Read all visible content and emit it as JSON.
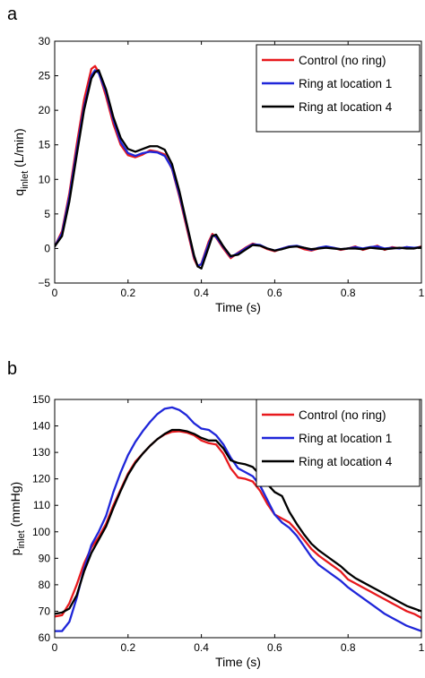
{
  "chart_data": [
    {
      "type": "line",
      "panel_label": "a",
      "xlabel": "Time (s)",
      "ylabel_main": "q",
      "ylabel_sub": "inlet",
      "ylabel_unit": " (L/min)",
      "xlim": [
        0,
        1
      ],
      "ylim": [
        -5,
        30
      ],
      "xticks": [
        0,
        0.2,
        0.4,
        0.6,
        0.8,
        1
      ],
      "xtick_labels": [
        "0",
        "0.2",
        "0.4",
        "0.6",
        "0.8",
        "1"
      ],
      "yticks": [
        -5,
        0,
        5,
        10,
        15,
        20,
        25,
        30
      ],
      "ytick_labels": [
        "−5",
        "0",
        "5",
        "10",
        "15",
        "20",
        "25",
        "30"
      ],
      "grid": false,
      "legend_position": "top-right",
      "series": [
        {
          "name": "Control (no ring)",
          "color": "#e8191d",
          "x": [
            0,
            0.02,
            0.04,
            0.06,
            0.08,
            0.1,
            0.11,
            0.12,
            0.14,
            0.16,
            0.18,
            0.2,
            0.22,
            0.24,
            0.26,
            0.28,
            0.3,
            0.32,
            0.34,
            0.36,
            0.38,
            0.39,
            0.4,
            0.42,
            0.43,
            0.44,
            0.46,
            0.48,
            0.5,
            0.52,
            0.54,
            0.56,
            0.58,
            0.6,
            0.62,
            0.64,
            0.66,
            0.68,
            0.7,
            0.72,
            0.74,
            0.76,
            0.78,
            0.8,
            0.82,
            0.84,
            0.86,
            0.88,
            0.9,
            0.92,
            0.94,
            0.96,
            0.98,
            1
          ],
          "y": [
            0.3,
            2.5,
            8,
            15,
            21.5,
            26,
            26.4,
            25.5,
            22,
            18,
            15,
            13.5,
            13.2,
            13.6,
            14.2,
            14,
            13.6,
            11.5,
            7.5,
            3,
            -1.5,
            -2.6,
            -2.2,
            1,
            2.1,
            1.6,
            0,
            -1.4,
            -0.6,
            0.1,
            0.7,
            0.4,
            -0.1,
            -0.4,
            0,
            0.3,
            0.3,
            -0.1,
            -0.3,
            0,
            0.2,
            0.1,
            -0.2,
            0,
            0.3,
            -0.2,
            0.1,
            0.4,
            -0.2,
            0.2,
            0,
            0.2,
            0,
            0.3
          ]
        },
        {
          "name": "Ring at location 1",
          "color": "#1f26d9",
          "x": [
            0,
            0.02,
            0.04,
            0.06,
            0.08,
            0.1,
            0.11,
            0.12,
            0.14,
            0.16,
            0.18,
            0.2,
            0.22,
            0.24,
            0.26,
            0.28,
            0.3,
            0.32,
            0.34,
            0.36,
            0.38,
            0.39,
            0.4,
            0.42,
            0.43,
            0.44,
            0.46,
            0.48,
            0.5,
            0.52,
            0.54,
            0.56,
            0.58,
            0.6,
            0.62,
            0.64,
            0.66,
            0.68,
            0.7,
            0.72,
            0.74,
            0.76,
            0.78,
            0.8,
            0.82,
            0.84,
            0.86,
            0.88,
            0.9,
            0.92,
            0.94,
            0.96,
            0.98,
            1
          ],
          "y": [
            0.3,
            2.2,
            7.5,
            14.2,
            20.5,
            25,
            25.8,
            25.4,
            22.6,
            18.6,
            15.4,
            13.8,
            13.4,
            13.8,
            14,
            13.9,
            13.4,
            11.6,
            7.8,
            3.4,
            -1.2,
            -2.5,
            -2.3,
            0.7,
            1.9,
            1.7,
            0.2,
            -1.2,
            -0.7,
            0,
            0.6,
            0.5,
            0,
            -0.3,
            0,
            0.3,
            0.4,
            0.1,
            -0.2,
            0.1,
            0.3,
            0.1,
            -0.1,
            0,
            0.2,
            0,
            0.2,
            0.3,
            0,
            0.1,
            0,
            0.2,
            0.1,
            0.2
          ]
        },
        {
          "name": "Ring at location 4",
          "color": "#000000",
          "x": [
            0,
            0.02,
            0.04,
            0.06,
            0.08,
            0.1,
            0.11,
            0.12,
            0.14,
            0.16,
            0.18,
            0.2,
            0.22,
            0.24,
            0.26,
            0.28,
            0.3,
            0.32,
            0.34,
            0.36,
            0.38,
            0.39,
            0.4,
            0.42,
            0.43,
            0.44,
            0.46,
            0.48,
            0.5,
            0.52,
            0.54,
            0.56,
            0.58,
            0.6,
            0.62,
            0.64,
            0.66,
            0.68,
            0.7,
            0.72,
            0.74,
            0.76,
            0.78,
            0.8,
            0.82,
            0.84,
            0.86,
            0.88,
            0.9,
            0.92,
            0.94,
            0.96,
            0.98,
            1
          ],
          "y": [
            0.3,
            1.8,
            6.8,
            13.5,
            20,
            24.6,
            25.5,
            25.8,
            23,
            19,
            16,
            14.4,
            14,
            14.4,
            14.8,
            14.8,
            14.3,
            12.2,
            8.3,
            3.6,
            -1,
            -2.6,
            -2.9,
            0.2,
            1.8,
            2,
            0.3,
            -1.1,
            -0.9,
            -0.2,
            0.5,
            0.4,
            0,
            -0.3,
            -0.1,
            0.2,
            0.3,
            0.1,
            -0.1,
            0,
            0.1,
            0,
            -0.1,
            0,
            0,
            -0.1,
            0.1,
            0,
            -0.1,
            0,
            0.1,
            0,
            0,
            0.2
          ]
        }
      ]
    },
    {
      "type": "line",
      "panel_label": "b",
      "xlabel": "Time (s)",
      "ylabel_main": "p",
      "ylabel_sub": "inlet",
      "ylabel_unit": " (mmHg)",
      "xlim": [
        0,
        1
      ],
      "ylim": [
        60,
        150
      ],
      "xticks": [
        0,
        0.2,
        0.4,
        0.6,
        0.8,
        1
      ],
      "xtick_labels": [
        "0",
        "0.2",
        "0.4",
        "0.6",
        "0.8",
        "1"
      ],
      "yticks": [
        60,
        70,
        80,
        90,
        100,
        110,
        120,
        130,
        140,
        150
      ],
      "ytick_labels": [
        "60",
        "70",
        "80",
        "90",
        "100",
        "110",
        "120",
        "130",
        "140",
        "150"
      ],
      "grid": false,
      "legend_position": "top-right",
      "series": [
        {
          "name": "Control (no ring)",
          "color": "#e8191d",
          "x": [
            0,
            0.02,
            0.04,
            0.06,
            0.08,
            0.1,
            0.12,
            0.14,
            0.16,
            0.18,
            0.2,
            0.22,
            0.24,
            0.26,
            0.28,
            0.3,
            0.32,
            0.34,
            0.36,
            0.38,
            0.4,
            0.42,
            0.44,
            0.46,
            0.48,
            0.5,
            0.52,
            0.54,
            0.56,
            0.58,
            0.6,
            0.62,
            0.64,
            0.66,
            0.68,
            0.7,
            0.72,
            0.74,
            0.76,
            0.78,
            0.8,
            0.82,
            0.84,
            0.86,
            0.88,
            0.9,
            0.92,
            0.94,
            0.96,
            0.98,
            1
          ],
          "y": [
            68,
            68.5,
            73,
            80,
            88,
            94,
            98,
            103,
            110,
            116,
            122,
            126.5,
            129.5,
            132.5,
            135,
            136.8,
            137.8,
            138,
            137.5,
            136.5,
            134.5,
            133.5,
            133,
            129.5,
            124,
            120.5,
            120,
            119,
            115.5,
            110.5,
            106.5,
            105,
            103.5,
            100.5,
            97,
            93.5,
            91,
            89,
            87,
            85,
            82,
            80.5,
            79,
            77.5,
            76,
            74.5,
            73,
            71.5,
            70,
            69,
            67.5
          ]
        },
        {
          "name": "Ring at location 1",
          "color": "#1f26d9",
          "x": [
            0,
            0.02,
            0.04,
            0.06,
            0.08,
            0.1,
            0.12,
            0.14,
            0.16,
            0.18,
            0.2,
            0.22,
            0.24,
            0.26,
            0.28,
            0.3,
            0.32,
            0.34,
            0.36,
            0.38,
            0.4,
            0.42,
            0.44,
            0.46,
            0.48,
            0.5,
            0.52,
            0.54,
            0.56,
            0.58,
            0.6,
            0.62,
            0.64,
            0.66,
            0.68,
            0.7,
            0.72,
            0.74,
            0.76,
            0.78,
            0.8,
            0.82,
            0.84,
            0.86,
            0.88,
            0.9,
            0.92,
            0.94,
            0.96,
            0.98,
            1
          ],
          "y": [
            62.5,
            62.5,
            66,
            75,
            86,
            95,
            100,
            106,
            115,
            122.5,
            129,
            134,
            138,
            141.5,
            144.5,
            146.5,
            147,
            146,
            144,
            141,
            139,
            138.5,
            136.5,
            133,
            128,
            124,
            122.5,
            121,
            117.5,
            112,
            106.5,
            103.5,
            101.5,
            98.5,
            94.5,
            90.5,
            87.5,
            85.5,
            83.5,
            81.5,
            79,
            77,
            75,
            73,
            71,
            69,
            67.5,
            66,
            64.5,
            63.5,
            62.5
          ]
        },
        {
          "name": "Ring at location 4",
          "color": "#000000",
          "x": [
            0,
            0.02,
            0.04,
            0.06,
            0.08,
            0.1,
            0.12,
            0.14,
            0.16,
            0.18,
            0.2,
            0.22,
            0.24,
            0.26,
            0.28,
            0.3,
            0.32,
            0.34,
            0.36,
            0.38,
            0.4,
            0.42,
            0.44,
            0.46,
            0.48,
            0.5,
            0.52,
            0.54,
            0.56,
            0.58,
            0.6,
            0.62,
            0.64,
            0.66,
            0.68,
            0.7,
            0.72,
            0.74,
            0.76,
            0.78,
            0.8,
            0.82,
            0.84,
            0.86,
            0.88,
            0.9,
            0.92,
            0.94,
            0.96,
            0.98,
            1
          ],
          "y": [
            69,
            69.5,
            71,
            76,
            85,
            92,
            97,
            102,
            109,
            115.5,
            121.5,
            126,
            129.5,
            132.5,
            135,
            137,
            138.5,
            138.5,
            138,
            137,
            135.5,
            134.5,
            134.5,
            131.5,
            127,
            126,
            125.5,
            124.5,
            121.5,
            118,
            115,
            113.5,
            107.5,
            103,
            99,
            95.5,
            93,
            91,
            89,
            87,
            84.5,
            82.5,
            81,
            79.5,
            78,
            76.5,
            75,
            73.5,
            72,
            71,
            70
          ]
        }
      ]
    }
  ]
}
